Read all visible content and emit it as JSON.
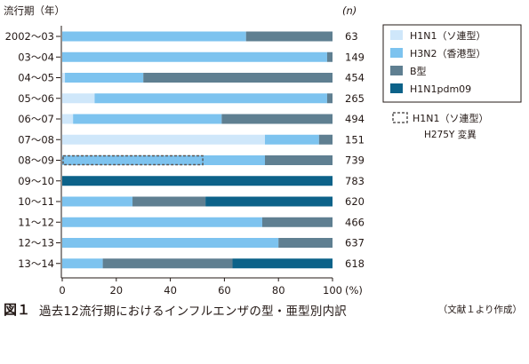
{
  "chart_data": {
    "type": "bar",
    "orientation": "horizontal",
    "stacked": true,
    "y_title": "流行期（年）",
    "n_header": "(n)",
    "x_unit": "(%)",
    "xlim": [
      0,
      100
    ],
    "x_ticks": [
      0,
      20,
      40,
      60,
      80,
      100
    ],
    "grid": false,
    "legend_position": "right",
    "categories": [
      "2002～03",
      "03～04",
      "04～05",
      "05～06",
      "06～07",
      "07～08",
      "08～09",
      "09～10",
      "10～11",
      "11～12",
      "12～13",
      "13～14"
    ],
    "n_values": [
      63,
      149,
      454,
      265,
      494,
      151,
      739,
      783,
      620,
      466,
      637,
      618
    ],
    "series": [
      {
        "name": "H1N1（ソ連型）",
        "color": "#cfe7fa",
        "values": [
          0,
          0,
          1,
          12,
          4,
          75,
          0,
          0,
          0,
          0,
          0,
          0
        ]
      },
      {
        "name": "H3N2（香港型）",
        "color": "#7dc3ef",
        "values": [
          68,
          98,
          29,
          86,
          55,
          20,
          75,
          0,
          26,
          74,
          80,
          15
        ]
      },
      {
        "name": "B型",
        "color": "#5f7f91",
        "values": [
          32,
          2,
          70,
          2,
          41,
          5,
          25,
          0,
          27,
          26,
          20,
          48
        ]
      },
      {
        "name": "H1N1pdm09",
        "color": "#0c6289",
        "values": [
          0,
          0,
          0,
          0,
          0,
          0,
          0,
          100,
          47,
          0,
          0,
          37
        ]
      }
    ],
    "resistant_h275y": {
      "category": "08～09",
      "value": 52,
      "label_line1": "H1N1（ソ連型）",
      "label_line2": "H275Y 変異"
    }
  },
  "caption": {
    "label": "図１",
    "title": "過去12流行期におけるインフルエンザの型・亜型別内訳",
    "source": "（文献１より作成）"
  }
}
